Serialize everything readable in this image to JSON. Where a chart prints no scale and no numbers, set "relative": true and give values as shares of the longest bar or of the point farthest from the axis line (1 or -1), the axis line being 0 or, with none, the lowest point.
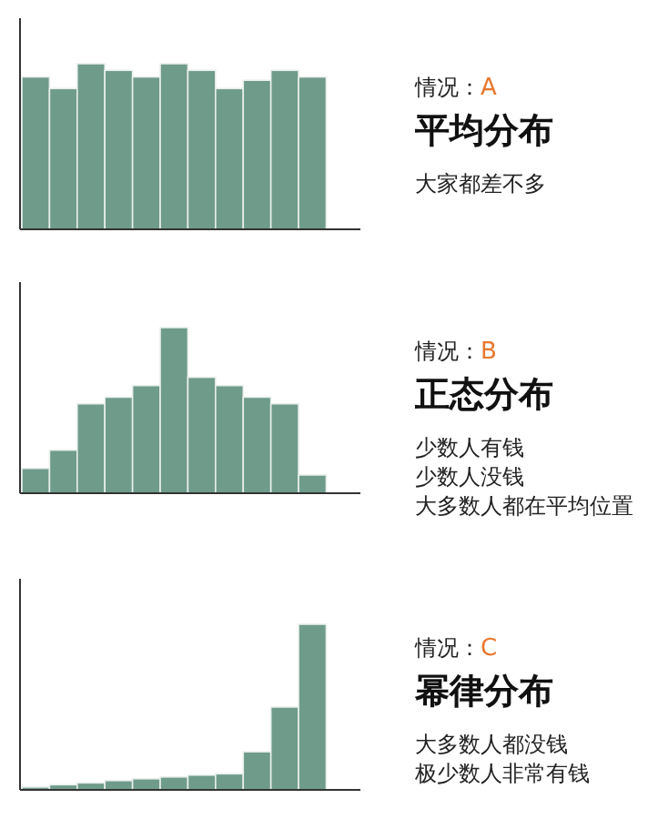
{
  "chart_data": [
    {
      "type": "bar",
      "annotations": [
        "情况：A",
        "平均分布",
        "大家都差不多"
      ],
      "categories": [
        null,
        null,
        null,
        null,
        null,
        null,
        null,
        null,
        null,
        null,
        null
      ],
      "values": [
        0.92,
        0.85,
        1,
        0.96,
        0.92,
        1,
        0.96,
        0.85,
        0.9,
        0.96,
        0.92
      ],
      "color": "#6f9b8a",
      "relative": true
    },
    {
      "type": "bar",
      "annotations": [
        "情况：B",
        "正态分布",
        "少数人有钱",
        "少数人没钱",
        "大多数人都在平均位置"
      ],
      "categories": [
        null,
        null,
        null,
        null,
        null,
        null,
        null,
        null,
        null,
        null,
        null
      ],
      "values": [
        0.15,
        0.26,
        0.54,
        0.58,
        0.65,
        1,
        0.7,
        0.65,
        0.58,
        0.54,
        0.11
      ],
      "color": "#6f9b8a",
      "relative": true
    },
    {
      "type": "bar",
      "annotations": [
        "情况：C",
        "幂律分布",
        "大多数人都没钱",
        "极少数人非常有钱"
      ],
      "categories": [
        null,
        null,
        null,
        null,
        null,
        null,
        null,
        null,
        null,
        null,
        null
      ],
      "values": [
        0.017,
        0.031,
        0.042,
        0.056,
        0.067,
        0.078,
        0.089,
        0.097,
        0.23,
        0.5,
        1
      ],
      "color": "#6f9b8a",
      "relative": true
    }
  ]
}
